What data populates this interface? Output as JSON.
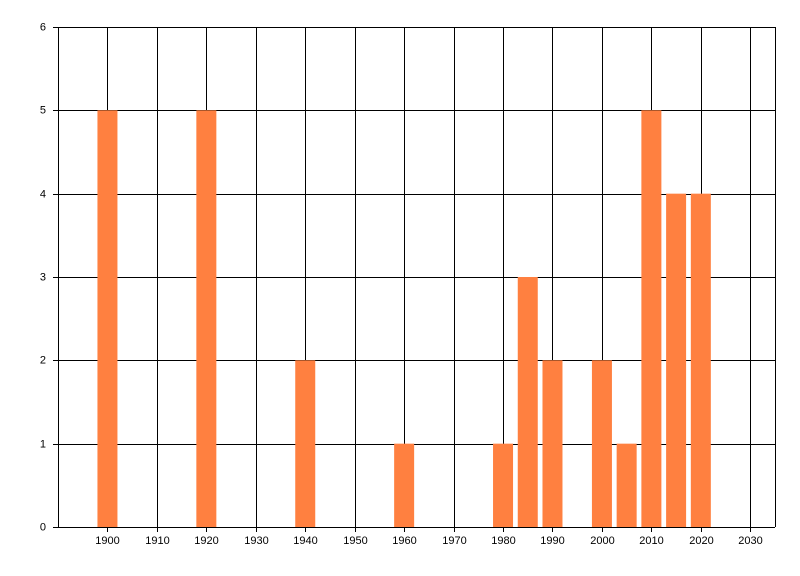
{
  "chart_data": {
    "type": "bar",
    "x": [
      1900,
      1920,
      1940,
      1960,
      1980,
      1985,
      1990,
      2000,
      2005,
      2010,
      2015,
      2020
    ],
    "values": [
      5,
      5,
      2,
      1,
      1,
      3,
      2,
      2,
      1,
      5,
      4,
      4
    ],
    "color": "#ff8040",
    "xlim": [
      1890,
      2035
    ],
    "xticks": [
      1900,
      1910,
      1920,
      1930,
      1940,
      1950,
      1960,
      1970,
      1980,
      1990,
      2000,
      2010,
      2020,
      2030
    ],
    "ylim": [
      0,
      6
    ],
    "yticks": [
      0,
      1,
      2,
      3,
      4,
      5,
      6
    ],
    "grid": true
  }
}
